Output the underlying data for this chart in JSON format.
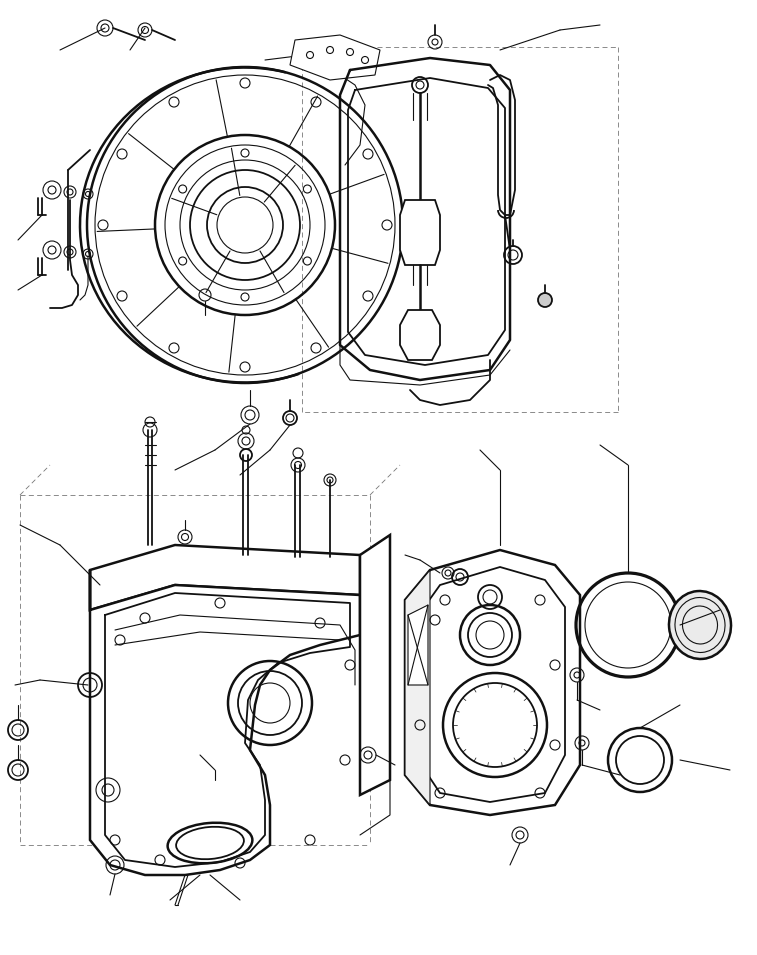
{
  "background_color": "#ffffff",
  "line_color": "#111111",
  "dash_color": "#777777",
  "figsize": [
    7.57,
    9.55
  ],
  "dpi": 100,
  "lw_main": 1.3,
  "lw_thin": 0.8,
  "lw_thick": 1.8,
  "lw_dash": 0.6
}
